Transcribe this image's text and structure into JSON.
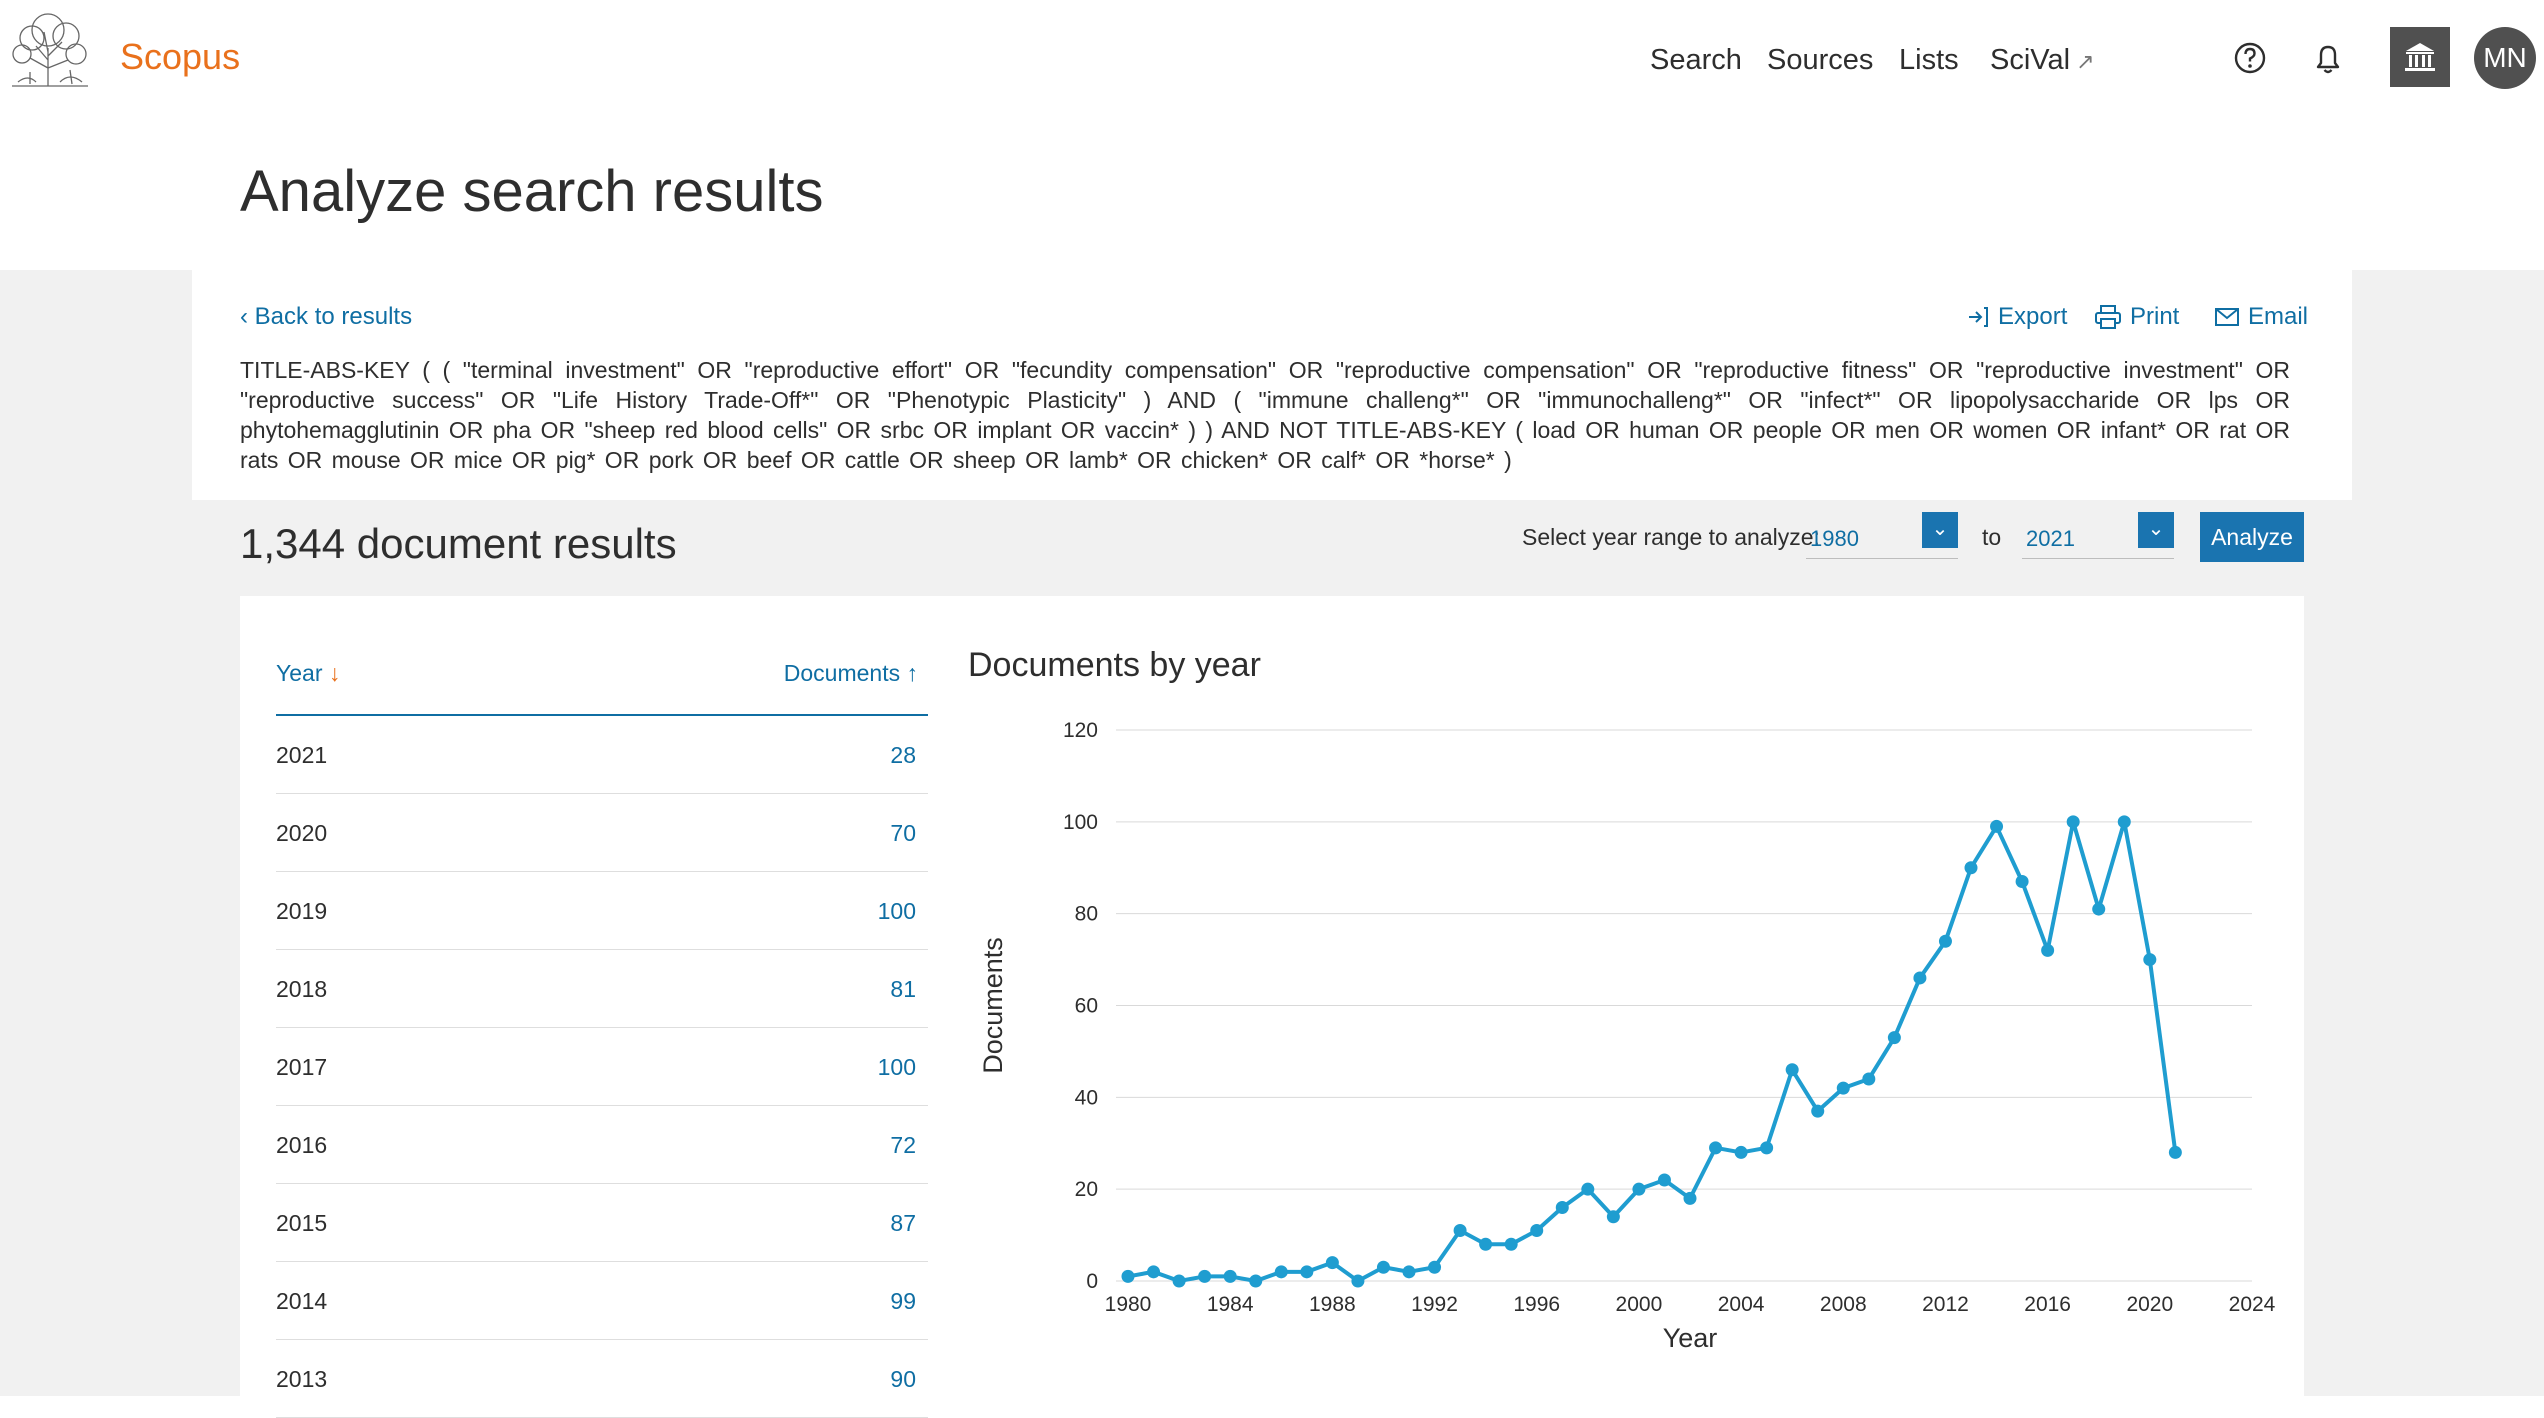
{
  "header": {
    "brand": "Scopus",
    "nav": [
      {
        "label": "Search"
      },
      {
        "label": "Sources"
      },
      {
        "label": "Lists"
      },
      {
        "label": "SciVal",
        "icon": "external-link-icon"
      }
    ],
    "icons": [
      "help-icon",
      "bell-icon",
      "institution-icon"
    ],
    "avatar_initials": "MN"
  },
  "page_title": "Analyze search results",
  "toolbar": {
    "back_label": "Back to results",
    "export_label": "Export",
    "print_label": "Print",
    "email_label": "Email"
  },
  "query": "TITLE-ABS-KEY ( ( \"terminal investment\"  OR  \"reproductive effort\"  OR  \"fecundity compensation\"  OR  \"reproductive compensation\"  OR  \"reproductive fitness\"  OR  \"reproductive investment\"  OR  \"reproductive success\"  OR  \"Life History Trade-Off*\"  OR  \"Phenotypic Plasticity\" )  AND  ( \"immune challeng*\"  OR  \"immunochalleng*\"  OR  \"infect*\"  OR  lipopolysaccharide  OR  lps  OR  phytohemagglutinin  OR  pha  OR  \"sheep red blood cells\"  OR  srbc  OR  implant  OR  vaccin* ) )  AND NOT  TITLE-ABS-KEY ( load  OR  human  OR  people  OR  men  OR  women  OR  infant*  OR  rat  OR  rats  OR  mouse  OR  mice  OR  pig*  OR  pork  OR  beef  OR  cattle  OR  sheep  OR  lamb*  OR  chicken*  OR  calf*  OR  *horse* )",
  "results_title": "1,344 document results",
  "range": {
    "label": "Select year range to analyze:",
    "from": "1980",
    "to_label": "to",
    "to": "2021",
    "analyze_label": "Analyze"
  },
  "table": {
    "col_year": "Year",
    "col_docs": "Documents",
    "rows": [
      {
        "year": "2021",
        "count": "28"
      },
      {
        "year": "2020",
        "count": "70"
      },
      {
        "year": "2019",
        "count": "100"
      },
      {
        "year": "2018",
        "count": "81"
      },
      {
        "year": "2017",
        "count": "100"
      },
      {
        "year": "2016",
        "count": "72"
      },
      {
        "year": "2015",
        "count": "87"
      },
      {
        "year": "2014",
        "count": "99"
      },
      {
        "year": "2013",
        "count": "90"
      }
    ]
  },
  "colors": {
    "brand": "#e9711c",
    "link": "#0f6ea3",
    "button": "#1a74b0",
    "series": "#1f9dd0"
  },
  "chart_data": {
    "type": "line",
    "title": "Documents by year",
    "xlabel": "Year",
    "ylabel": "Documents",
    "xlim": [
      1980,
      2024
    ],
    "ylim": [
      0,
      120
    ],
    "xticks": [
      1980,
      1984,
      1988,
      1992,
      1996,
      2000,
      2004,
      2008,
      2012,
      2016,
      2020,
      2024
    ],
    "yticks": [
      0,
      20,
      40,
      60,
      80,
      100,
      120
    ],
    "grid": true,
    "x": [
      1980,
      1981,
      1982,
      1983,
      1984,
      1985,
      1986,
      1987,
      1988,
      1989,
      1990,
      1991,
      1992,
      1993,
      1994,
      1995,
      1996,
      1997,
      1998,
      1999,
      2000,
      2001,
      2002,
      2003,
      2004,
      2005,
      2006,
      2007,
      2008,
      2009,
      2010,
      2011,
      2012,
      2013,
      2014,
      2015,
      2016,
      2017,
      2018,
      2019,
      2020,
      2021
    ],
    "values": [
      1,
      2,
      0,
      1,
      1,
      0,
      2,
      2,
      4,
      0,
      3,
      2,
      3,
      11,
      8,
      8,
      11,
      16,
      20,
      14,
      20,
      22,
      18,
      29,
      28,
      29,
      46,
      37,
      42,
      44,
      53,
      66,
      74,
      90,
      99,
      87,
      72,
      100,
      81,
      100,
      70,
      28
    ]
  }
}
